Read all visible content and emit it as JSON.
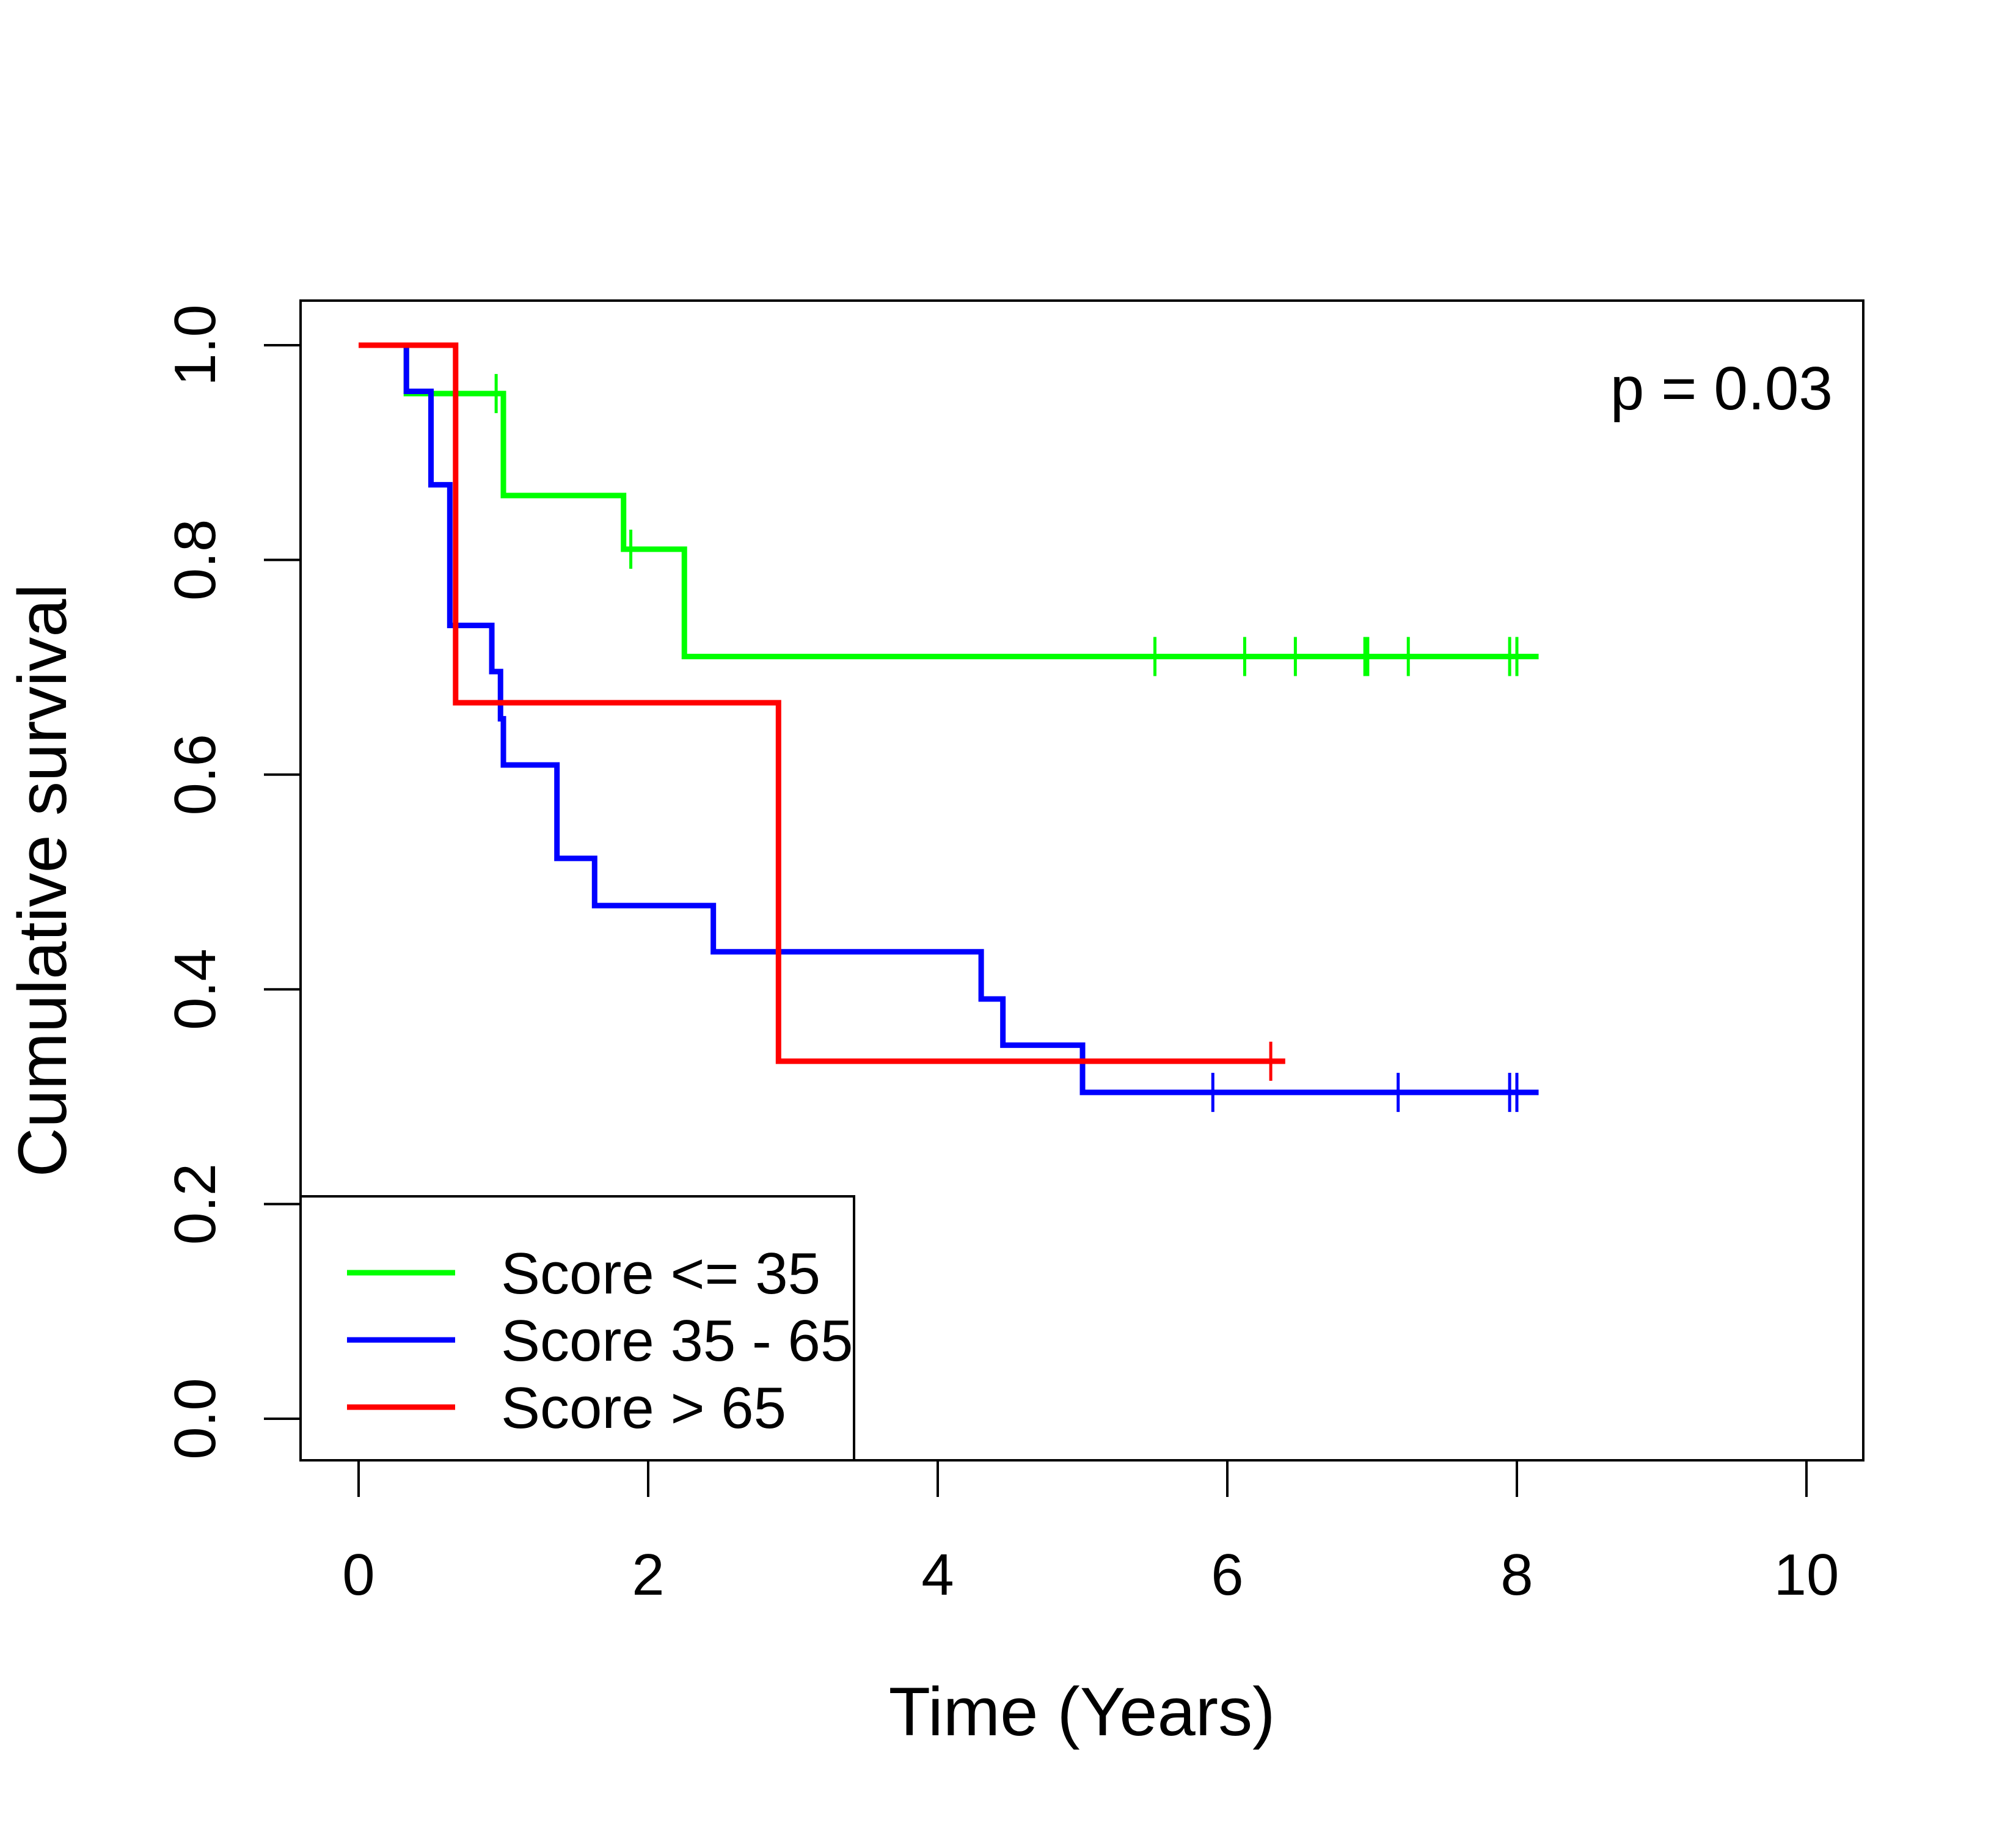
{
  "chart_data": {
    "type": "line",
    "subtype": "kaplan-meier step curve",
    "xlabel": "Time (Years)",
    "ylabel": "Cumulative survival",
    "xlim": [
      0,
      10
    ],
    "ylim": [
      0,
      1
    ],
    "xticks": [
      0,
      2,
      4,
      6,
      8,
      10
    ],
    "xtick_labels": [
      "0",
      "2",
      "4",
      "6",
      "8",
      "10"
    ],
    "yticks": [
      0,
      0.2,
      0.4,
      0.6,
      0.8,
      1
    ],
    "ytick_labels": [
      "0.0",
      "0.2",
      "0.4",
      "0.6",
      "0.8",
      "1.0"
    ],
    "grid": false,
    "legend_position": "bottom-left",
    "annotation": "p = 0.03",
    "series": [
      {
        "name": "Score <= 35",
        "color": "#00ff00",
        "steps": [
          [
            0,
            1
          ],
          [
            0.33,
            0.955
          ],
          [
            1.0,
            0.909
          ],
          [
            1.0,
            0.86
          ],
          [
            1.83,
            0.81
          ],
          [
            2.25,
            0.71
          ]
        ],
        "end_x": 8.15,
        "censor_x": [
          0.95,
          1.88,
          5.5,
          6.12,
          6.47,
          6.95,
          6.97,
          7.25,
          7.95,
          8.0
        ]
      },
      {
        "name": "Score 35 - 65",
        "color": "#0000ff",
        "steps": [
          [
            0,
            1
          ],
          [
            0.33,
            0.957
          ],
          [
            0.5,
            0.87
          ],
          [
            0.63,
            0.739
          ],
          [
            0.92,
            0.696
          ],
          [
            0.98,
            0.652
          ],
          [
            1.0,
            0.609
          ],
          [
            1.37,
            0.522
          ],
          [
            1.63,
            0.478
          ],
          [
            2.45,
            0.435
          ],
          [
            4.3,
            0.391
          ],
          [
            4.45,
            0.348
          ],
          [
            5.0,
            0.304
          ]
        ],
        "end_x": 8.15,
        "censor_x": [
          5.9,
          7.18,
          7.95,
          8.0
        ]
      },
      {
        "name": "Score > 65",
        "color": "#ff0000",
        "steps": [
          [
            0,
            1
          ],
          [
            0.67,
            0.667
          ],
          [
            2.9,
            0.333
          ]
        ],
        "end_x": 6.4,
        "censor_x": [
          6.3
        ]
      }
    ]
  }
}
